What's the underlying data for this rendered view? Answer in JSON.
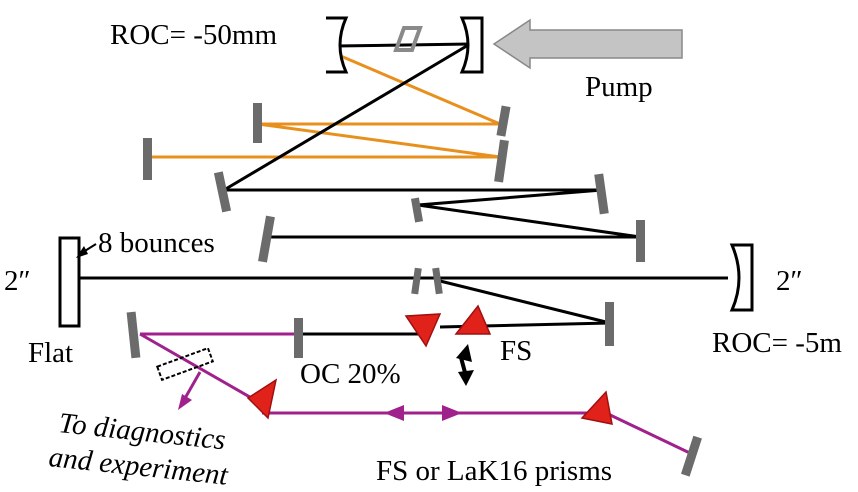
{
  "labels": {
    "roc_top": "ROC= -50mm",
    "pump": "Pump",
    "eight_bounces": "8 bounces",
    "two_inch_left": "2″",
    "two_inch_right": "2″",
    "flat": "Flat",
    "roc_right": "ROC= -5m",
    "fs": "FS",
    "oc": "OC 20%",
    "to_diag_line1": "To diagnostics",
    "to_diag_line2": "and experiment",
    "prisms": "FS or LaK16 prisms"
  },
  "colors": {
    "beam_cavity": "#000000",
    "beam_pump": "#e8901e",
    "beam_output": "#a0218c",
    "mirror": "#6b6b6b",
    "prism": "#e0221a",
    "pump_arrow": "#c4c4c4",
    "crystal": "#8a8a8a"
  }
}
